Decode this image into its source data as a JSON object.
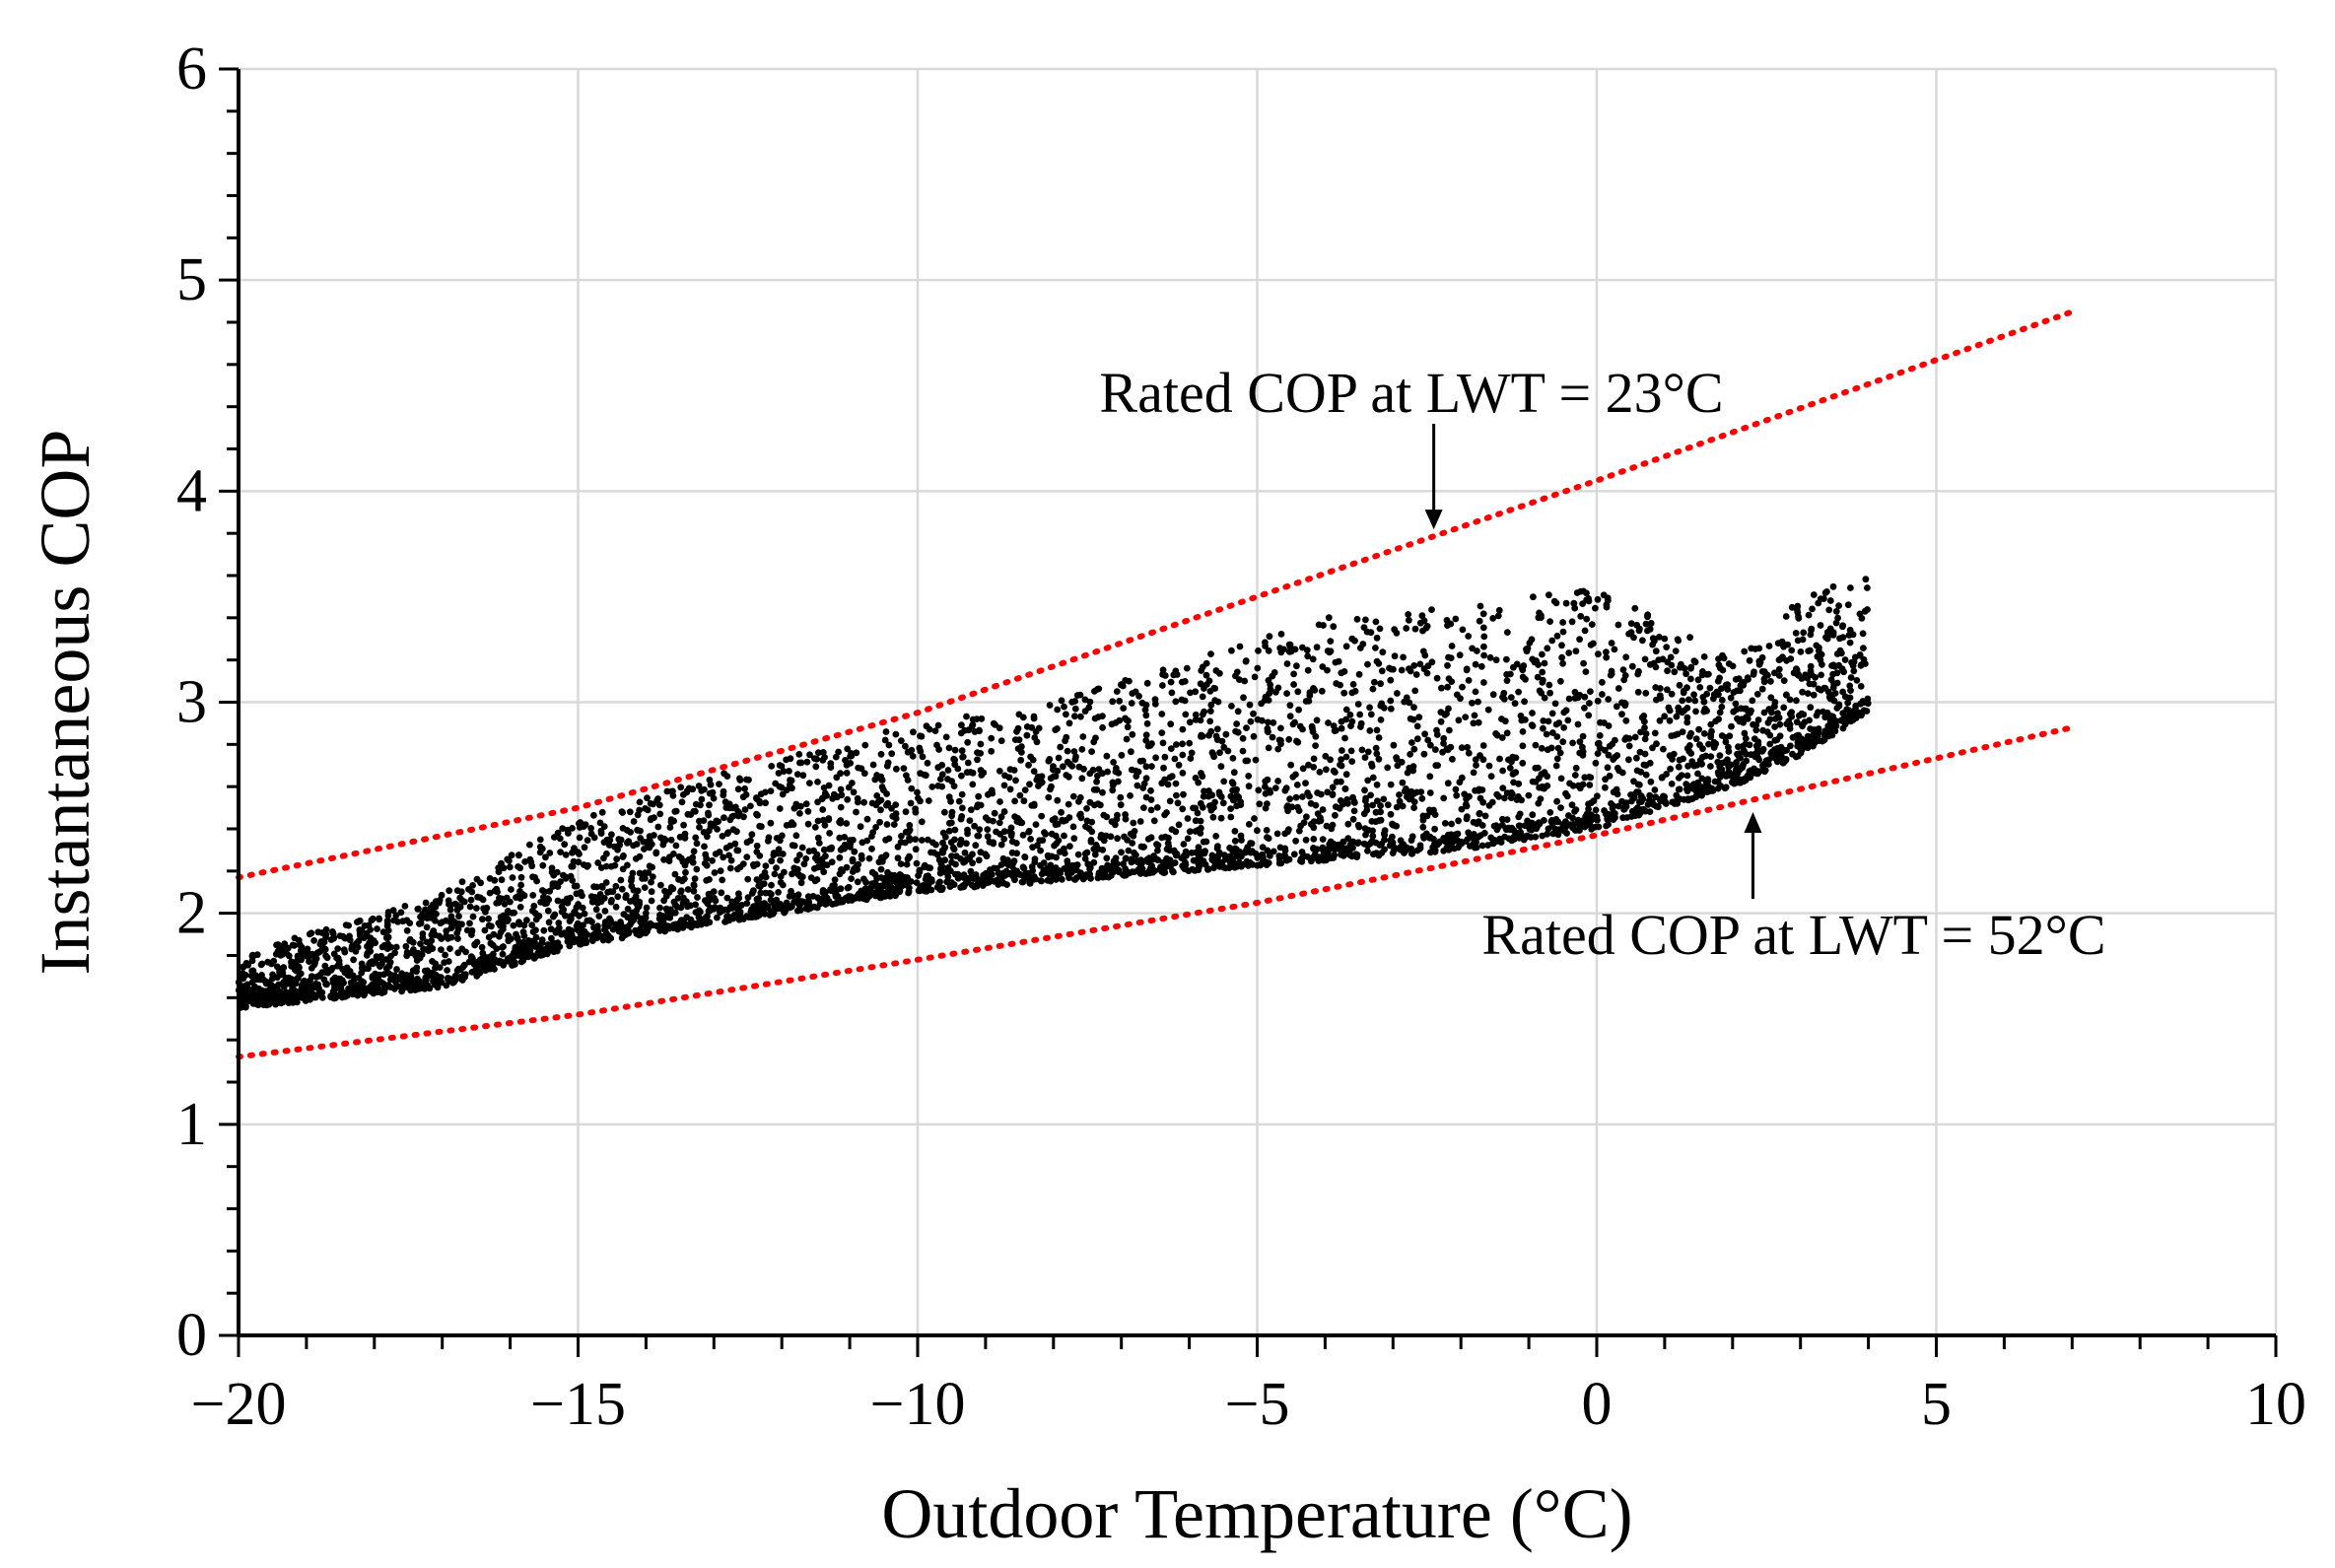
{
  "chart_data": {
    "type": "scatter",
    "xlabel": "Outdoor Temperature (°C)",
    "ylabel": "Instantaneous COP",
    "xlim": [
      -20,
      10
    ],
    "ylim": [
      0,
      6
    ],
    "x_ticks": [
      "−20",
      "−15",
      "−10",
      "−5",
      "0",
      "5",
      "10"
    ],
    "x_tick_values": [
      -20,
      -15,
      -10,
      -5,
      0,
      5,
      10
    ],
    "y_ticks": [
      "0",
      "1",
      "2",
      "3",
      "4",
      "5",
      "6"
    ],
    "y_tick_values": [
      0,
      1,
      2,
      3,
      4,
      5,
      6
    ],
    "grid": true,
    "series": [
      {
        "kind": "points",
        "color": "#000000",
        "sampling": {
          "x": [
            -20,
            -17,
            -15,
            -13,
            -10,
            -8,
            -6,
            -4,
            -2,
            0,
            2,
            3,
            4
          ],
          "lower": [
            1.55,
            1.65,
            1.85,
            1.95,
            2.1,
            2.15,
            2.2,
            2.25,
            2.3,
            2.4,
            2.6,
            2.75,
            2.95
          ],
          "upper": [
            1.8,
            2.1,
            2.45,
            2.65,
            2.9,
            3.0,
            3.2,
            3.4,
            3.45,
            3.55,
            3.2,
            3.5,
            3.6
          ]
        }
      },
      {
        "kind": "dotted-line",
        "color": "#ff0000",
        "x": [
          -20,
          -15,
          -10,
          -5,
          0,
          7
        ],
        "y": [
          2.17,
          2.5,
          2.95,
          3.5,
          4.05,
          4.85
        ]
      },
      {
        "kind": "dotted-line",
        "color": "#ff0000",
        "x": [
          -20,
          -15,
          -10,
          -5,
          0,
          7
        ],
        "y": [
          1.32,
          1.52,
          1.78,
          2.05,
          2.37,
          2.88
        ]
      }
    ],
    "annotations": [
      {
        "text": "Rated COP at LWT = 23°C",
        "x": -2.4,
        "y": 3.8,
        "direction": "down"
      },
      {
        "text": "Rated COP at LWT = 52°C",
        "x": 2.3,
        "y": 2.6,
        "direction": "up"
      }
    ]
  }
}
